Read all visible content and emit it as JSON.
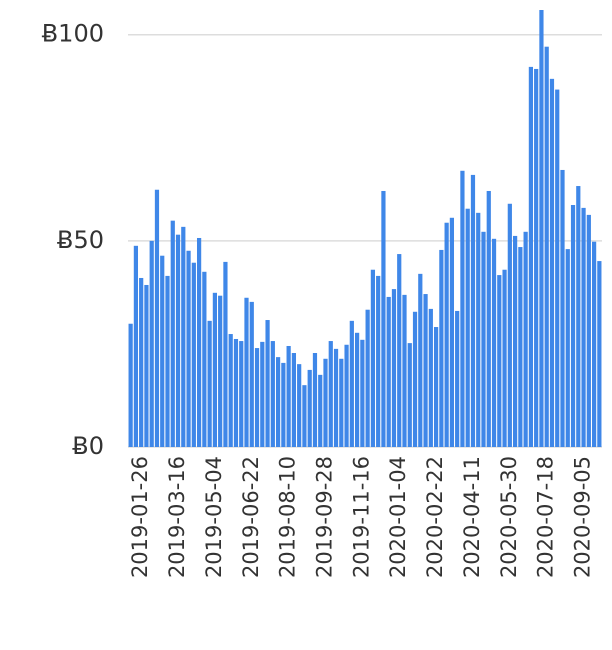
{
  "chart_data": {
    "type": "bar",
    "categories": [
      null,
      null,
      "2019-01-26",
      null,
      null,
      null,
      null,
      null,
      null,
      "2019-03-16",
      null,
      null,
      null,
      null,
      null,
      null,
      "2019-05-04",
      null,
      null,
      null,
      null,
      null,
      null,
      "2019-06-22",
      null,
      null,
      null,
      null,
      null,
      null,
      "2019-08-10",
      null,
      null,
      null,
      null,
      null,
      null,
      "2019-09-28",
      null,
      null,
      null,
      null,
      null,
      null,
      "2019-11-16",
      null,
      null,
      null,
      null,
      null,
      null,
      "2020-01-04",
      null,
      null,
      null,
      null,
      null,
      null,
      "2020-02-22",
      null,
      null,
      null,
      null,
      null,
      null,
      "2020-04-11",
      null,
      null,
      null,
      null,
      null,
      null,
      "2020-05-30",
      null,
      null,
      null,
      null,
      null,
      null,
      "2020-07-18",
      null,
      null,
      null,
      null,
      null,
      null,
      "2020-09-05",
      null,
      null,
      null
    ],
    "values": [
      29.9,
      48.8,
      41,
      39.3,
      50,
      62.4,
      46.4,
      41.5,
      54.9,
      51.5,
      53.4,
      47.6,
      44.7,
      50.7,
      42.5,
      30.6,
      37.4,
      36.7,
      44.9,
      27.4,
      26.2,
      25.7,
      36.2,
      35.2,
      24,
      25.5,
      30.8,
      25.7,
      21.8,
      20.4,
      24.5,
      22.8,
      20.1,
      15,
      18.7,
      22.8,
      17.5,
      21.4,
      25.7,
      23.8,
      21.4,
      24.8,
      30.6,
      27.7,
      26,
      33.3,
      43,
      41.5,
      62.1,
      36.4,
      38.3,
      46.8,
      36.9,
      25.2,
      32.8,
      42,
      37.1,
      33.5,
      29.1,
      47.8,
      54.4,
      55.6,
      33,
      67,
      57.8,
      66,
      56.8,
      52.2,
      62.1,
      50.5,
      41.7,
      43,
      59,
      51.2,
      48.5,
      52.2,
      92.2,
      91.7,
      106,
      97.1,
      89.3,
      86.7,
      67.2,
      48,
      58.7,
      63.3,
      58,
      56.3,
      49.8,
      45.1
    ],
    "color": "#3f87e8",
    "ylim": [
      0,
      106
    ],
    "yticks": [
      {
        "value": 0,
        "label": "Ƀ0"
      },
      {
        "value": 50,
        "label": "Ƀ50"
      },
      {
        "value": 100,
        "label": "Ƀ100"
      }
    ],
    "grid": true
  }
}
